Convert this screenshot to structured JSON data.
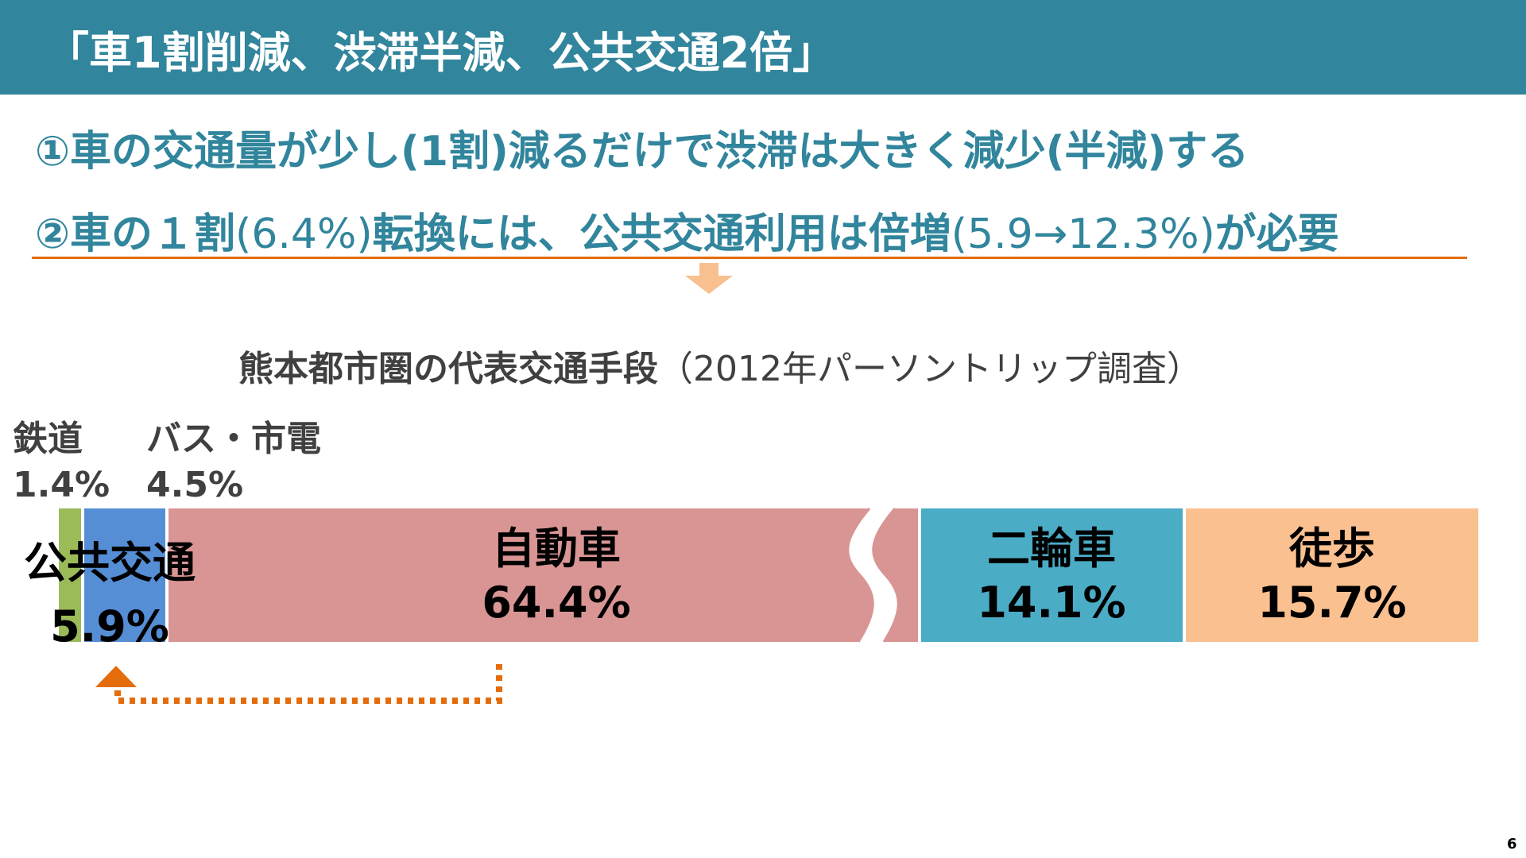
{
  "header": {
    "title": "「車1割削減、渋滞半減、公共交通2倍」"
  },
  "points": {
    "p1": "①車の交通量が少し(1割)減るだけで渋滞は大きく減少(半減)する",
    "p2_a": "②車の１割",
    "p2_b": "(6.4%)",
    "p2_c": "転換には、公共交通利用は倍増",
    "p2_d": "(5.9→12.3%)",
    "p2_e": "が必要"
  },
  "colors": {
    "header_bg": "#31859c",
    "point_text": "#31859c",
    "accent_orange": "#e46c0a",
    "arrow_orange": "#f8c08f"
  },
  "chart_data": {
    "type": "bar",
    "orientation": "horizontal-stacked-100",
    "title": "熊本都市圏の代表交通手段",
    "title_note": "（2012年パーソントリップ調査）",
    "axis_break_on": "自動車",
    "segments": [
      {
        "name": "鉄道",
        "value": 1.4,
        "label": "1.4%",
        "color": "#9bbb59"
      },
      {
        "name": "バス・市電",
        "value": 4.5,
        "label": "4.5%",
        "color": "#558ed5"
      },
      {
        "name": "自動車",
        "value": 64.4,
        "label": "64.4%",
        "color": "#d99594"
      },
      {
        "name": "二輪車",
        "value": 14.1,
        "label": "14.1%",
        "color": "#4bacc6"
      },
      {
        "name": "徒歩",
        "value": 15.7,
        "label": "15.7%",
        "color": "#fac090"
      }
    ],
    "group_label": {
      "name": "公共交通",
      "value": 5.9,
      "label": "5.9%"
    }
  },
  "page_number": "6"
}
